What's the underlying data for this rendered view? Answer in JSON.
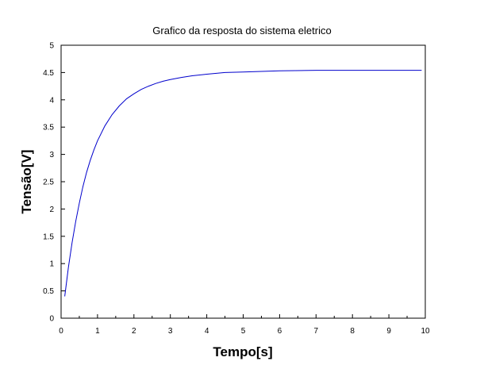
{
  "chart_data": {
    "type": "line",
    "title": "Grafico da resposta do sistema eletrico",
    "xlabel": "Tempo[s]",
    "ylabel": "Tensão[V]",
    "xlim": [
      0,
      10
    ],
    "ylim": [
      0,
      5
    ],
    "xticks": [
      "0",
      "1",
      "2",
      "3",
      "4",
      "5",
      "6",
      "7",
      "8",
      "9",
      "10"
    ],
    "yticks": [
      "0",
      "0.5",
      "1",
      "1.5",
      "2",
      "2.5",
      "3",
      "3.5",
      "4",
      "4.5",
      "5"
    ],
    "grid": false,
    "series": [
      {
        "color": "#0000cc",
        "x": [
          0.1,
          0.2,
          0.3,
          0.4,
          0.5,
          0.6,
          0.7,
          0.8,
          0.9,
          1.0,
          1.2,
          1.4,
          1.6,
          1.8,
          2.0,
          2.2,
          2.4,
          2.6,
          2.8,
          3.0,
          3.3,
          3.6,
          4.0,
          4.5,
          5.0,
          5.5,
          6.0,
          7.0,
          8.0,
          9.0,
          9.9
        ],
        "y": [
          0.4,
          0.93,
          1.38,
          1.77,
          2.11,
          2.41,
          2.67,
          2.89,
          3.08,
          3.25,
          3.52,
          3.73,
          3.89,
          4.02,
          4.11,
          4.19,
          4.25,
          4.3,
          4.34,
          4.37,
          4.41,
          4.44,
          4.47,
          4.5,
          4.51,
          4.52,
          4.53,
          4.54,
          4.54,
          4.54,
          4.54
        ]
      }
    ]
  }
}
